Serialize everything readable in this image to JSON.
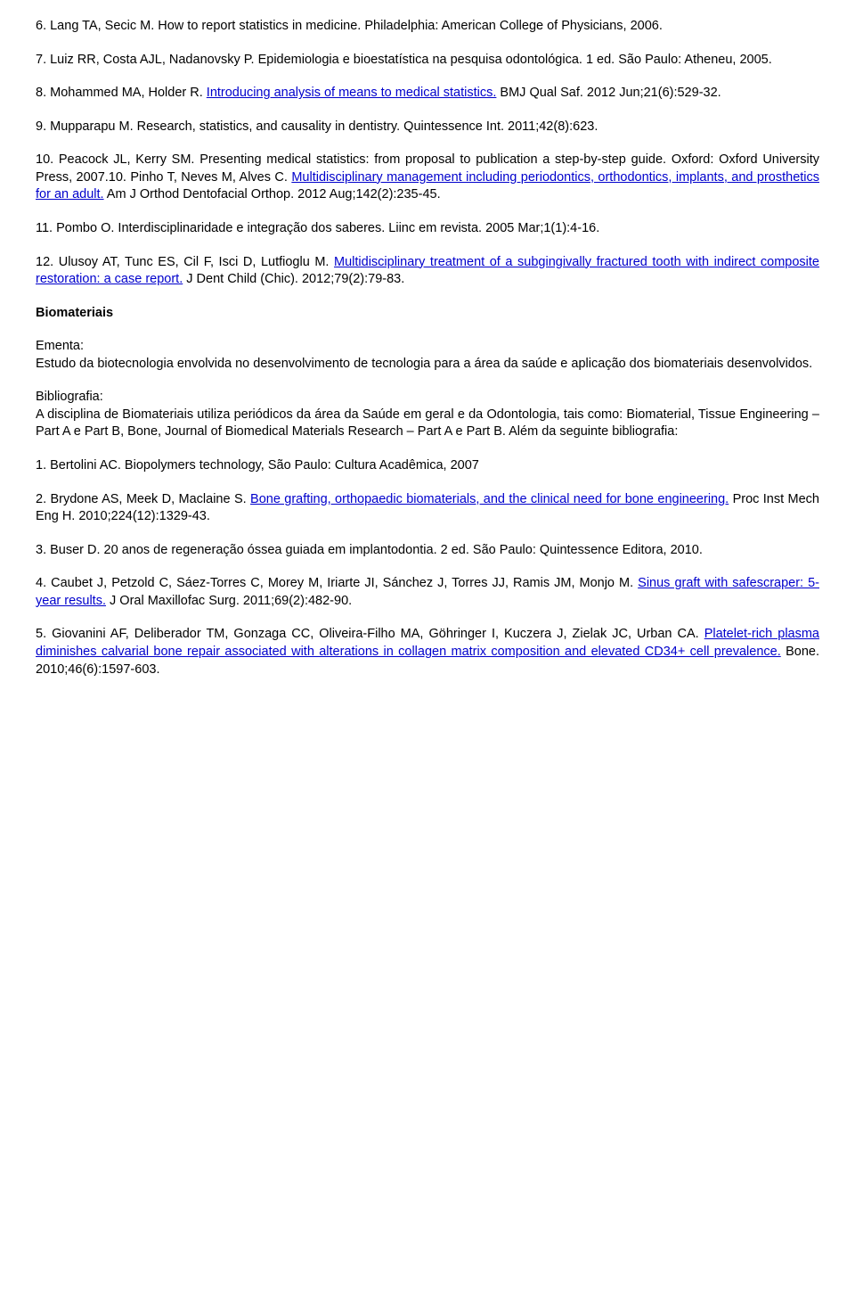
{
  "refs": {
    "r6": "6. Lang TA, Secic M. How to report statistics in medicine. Philadelphia: American College of Physicians, 2006.",
    "r7": "7. Luiz RR, Costa AJL, Nadanovsky P. Epidemiologia e bioestatística na pesquisa odontológica. 1 ed. São Paulo: Atheneu, 2005.",
    "r8_pre": "8. Mohammed MA, Holder R. ",
    "r8_link": "Introducing analysis of means to medical statistics.",
    "r8_post": " BMJ Qual Saf. 2012 Jun;21(6):529-32.",
    "r9": "9. Mupparapu M. Research, statistics, and causality in dentistry. Quintessence Int. 2011;42(8):623.",
    "r10_pre": "10. Peacock JL, Kerry SM. Presenting medical statistics: from proposal to publication a step-by-step guide. Oxford: Oxford University Press, 2007.10. Pinho T, Neves M, Alves C. ",
    "r10_link": "Multidisciplinary management including periodontics, orthodontics, implants, and prosthetics for an adult.",
    "r10_post": " Am J Orthod Dentofacial Orthop. 2012 Aug;142(2):235-45.",
    "r11": "11. Pombo O. Interdisciplinaridade e integração dos saberes. Liinc em revista. 2005 Mar;1(1):4-16.",
    "r12_pre": "12. Ulusoy AT, Tunc ES, Cil F, Isci D, Lutfioglu M. ",
    "r12_link": "Multidisciplinary treatment of a subgingivally fractured tooth with indirect composite restoration: a case report.",
    "r12_post": " J Dent Child (Chic). 2012;79(2):79-83."
  },
  "section": {
    "title": "Biomateriais",
    "ementa_label": "Ementa:",
    "ementa_text": "Estudo da biotecnologia envolvida no desenvolvimento de tecnologia para a área da saúde e aplicação dos biomateriais desenvolvidos.",
    "biblio_label": "Bibliografia:",
    "biblio_intro": "A disciplina de Biomateriais utiliza periódicos da área da Saúde em geral e da Odontologia, tais como: Biomaterial, Tissue Engineering – Part A e Part B, Bone, Journal of Biomedical Materials Research – Part A e Part B. Além da seguinte bibliografia:"
  },
  "brefs": {
    "b1": "1. Bertolini AC. Biopolymers technology, São Paulo: Cultura Acadêmica, 2007",
    "b2_pre": "2. Brydone AS, Meek D, Maclaine S. ",
    "b2_link": "Bone grafting, orthopaedic biomaterials, and the clinical need for bone engineering.",
    "b2_post": " Proc Inst Mech Eng H. 2010;224(12):1329-43.",
    "b3": "3. Buser D. 20 anos de regeneração óssea guiada em implantodontia. 2 ed. São Paulo: Quintessence Editora, 2010.",
    "b4_pre": "4. Caubet J, Petzold C, Sáez-Torres C, Morey M, Iriarte JI, Sánchez J, Torres JJ, Ramis JM, Monjo M. ",
    "b4_link": "Sinus graft with safescraper: 5-year results.",
    "b4_post": " J Oral Maxillofac Surg. 2011;69(2):482-90.",
    "b5_pre": "5. Giovanini AF, Deliberador TM, Gonzaga CC, Oliveira-Filho MA, Göhringer I, Kuczera J, Zielak JC, Urban CA. ",
    "b5_link": "Platelet-rich plasma diminishes calvarial bone repair associated with alterations in collagen matrix composition and elevated CD34+ cell prevalence.",
    "b5_post": " Bone. 2010;46(6):1597-603."
  }
}
